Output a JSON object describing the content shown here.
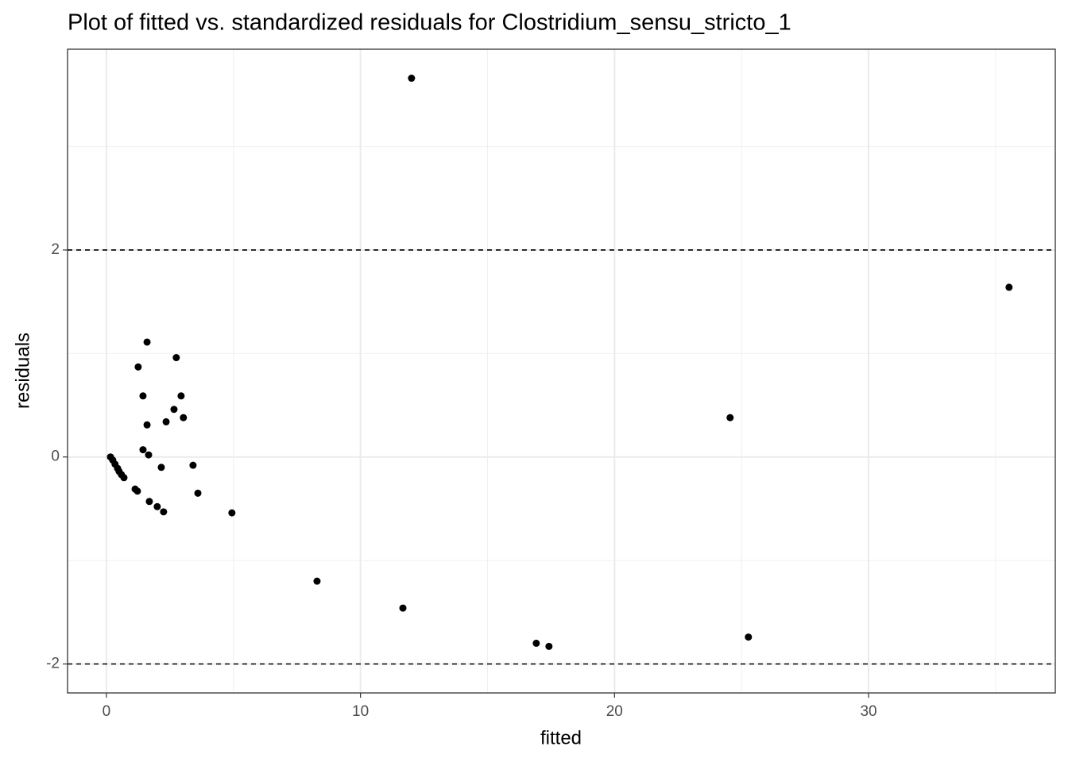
{
  "chart_data": {
    "type": "scatter",
    "title": "Plot of fitted vs. standardized residuals for Clostridium_sensu_stricto_1",
    "xlabel": "fitted",
    "ylabel": "residuals",
    "x": [
      0.16,
      0.25,
      0.34,
      0.44,
      0.5,
      0.59,
      0.69,
      1.13,
      1.22,
      1.25,
      1.44,
      1.44,
      1.6,
      1.6,
      1.66,
      1.69,
      2.0,
      2.16,
      2.25,
      2.35,
      2.66,
      2.75,
      2.94,
      3.03,
      3.41,
      3.6,
      4.94,
      8.29,
      11.67,
      12.01,
      16.92,
      17.42,
      24.55,
      25.27,
      35.53
    ],
    "values": [
      0,
      -0.03,
      -0.07,
      -0.11,
      -0.14,
      -0.17,
      -0.2,
      -0.31,
      -0.33,
      0.87,
      0.59,
      0.07,
      1.11,
      0.31,
      0.02,
      -0.43,
      -0.48,
      -0.1,
      -0.53,
      0.34,
      0.46,
      0.96,
      0.59,
      0.38,
      -0.08,
      -0.35,
      -0.54,
      -1.2,
      -1.46,
      3.66,
      -1.8,
      -1.83,
      0.38,
      -1.74,
      1.64
    ],
    "color": "#000000",
    "xlim": [
      -1.53,
      37.35
    ],
    "ylim": [
      -2.28,
      3.94
    ],
    "xticks": [
      0,
      10,
      20,
      30
    ],
    "yticks": [
      -2,
      0,
      2
    ],
    "minor_xticks": [
      5,
      15,
      25,
      35
    ],
    "minor_yticks": [
      -1,
      1,
      3
    ],
    "hlines": [
      -2,
      2
    ],
    "grid": true
  }
}
